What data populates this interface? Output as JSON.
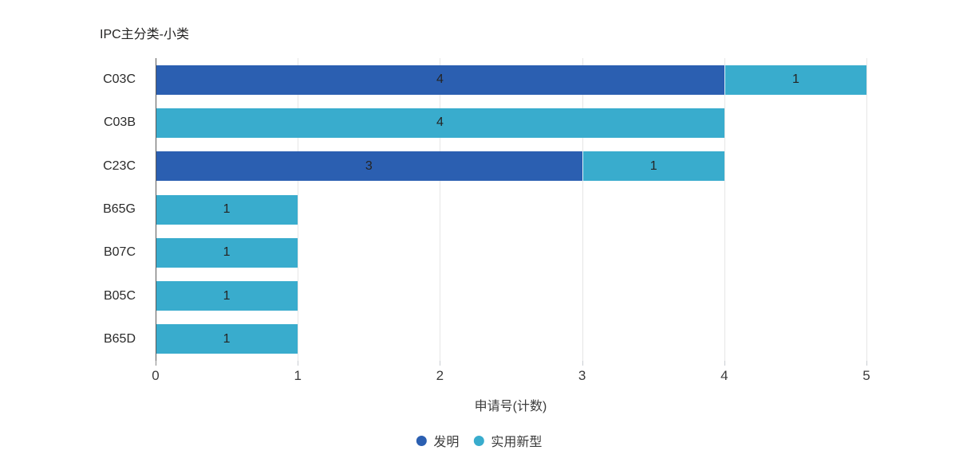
{
  "title": "IPC主分类-小类",
  "colors": {
    "invention": "#2B5FB1",
    "utility_model": "#39ACCD",
    "gridline": "#E6E6E6",
    "axis_line": "#5A5A5A",
    "text": "#252423"
  },
  "chart_data": {
    "type": "bar",
    "orientation": "horizontal",
    "stacked": true,
    "title": "IPC主分类-小类",
    "xlabel": "申请号(计数)",
    "ylabel": "IPC主分类-小类",
    "xlim": [
      0,
      5
    ],
    "xticks": [
      0,
      1,
      2,
      3,
      4,
      5
    ],
    "grid": true,
    "legend_position": "bottom-center",
    "categories": [
      "C03C",
      "C03B",
      "C23C",
      "B65G",
      "B07C",
      "B05C",
      "B65D"
    ],
    "series": [
      {
        "name": "发明",
        "color": "#2B5FB1",
        "values": [
          4,
          0,
          3,
          0,
          0,
          0,
          0
        ]
      },
      {
        "name": "实用新型",
        "color": "#39ACCD",
        "values": [
          1,
          4,
          1,
          1,
          1,
          1,
          1
        ]
      }
    ],
    "data_labels_visible": true
  }
}
